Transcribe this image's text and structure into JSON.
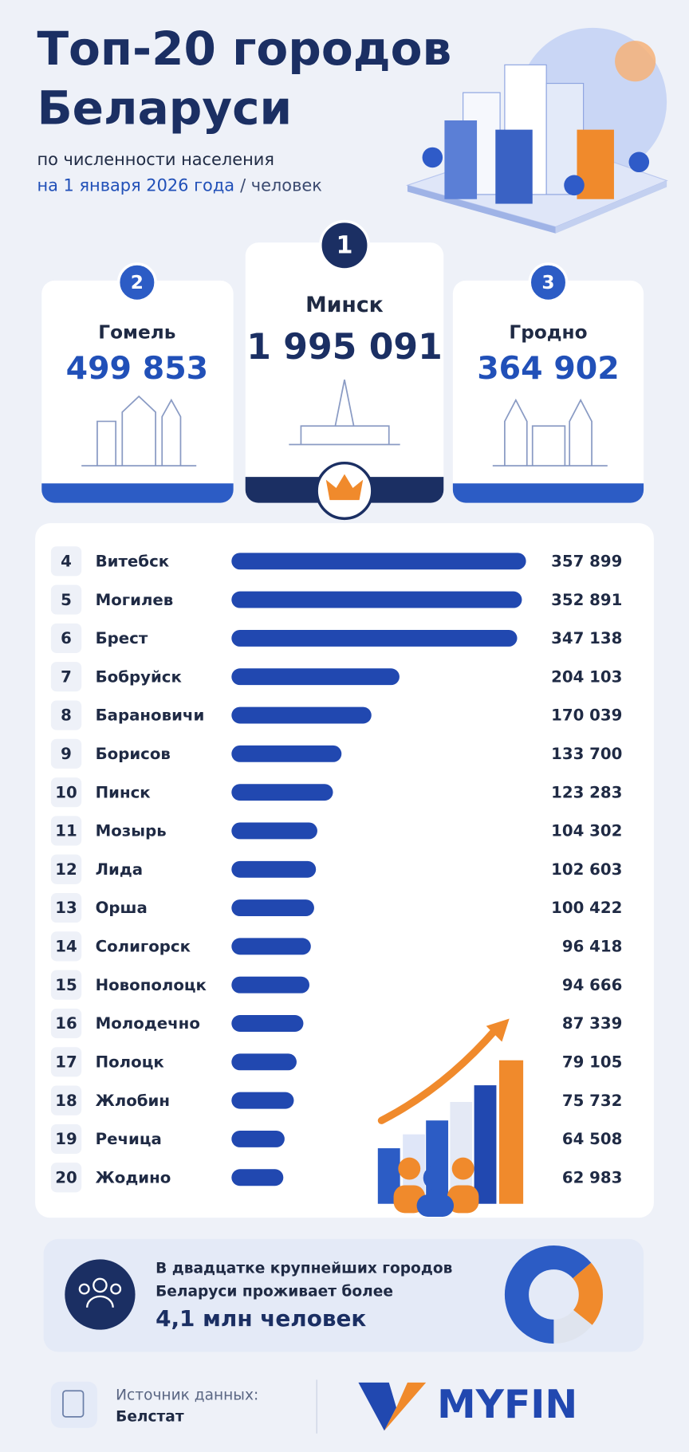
{
  "header": {
    "title_lines": [
      "Топ-20 городов",
      "Беларуси"
    ],
    "subtitle": "по численности населения",
    "date": "на 1 января 2026 года",
    "unit": "/ человек"
  },
  "podium": [
    {
      "rank": 2,
      "city": "Гомель",
      "population": "499 853"
    },
    {
      "rank": 1,
      "city": "Минск",
      "population": "1 995 091"
    },
    {
      "rank": 3,
      "city": "Гродно",
      "population": "364 902"
    }
  ],
  "chart_data": {
    "type": "bar",
    "ranks": [
      4,
      5,
      6,
      7,
      8,
      9,
      10,
      11,
      12,
      13,
      14,
      15,
      16,
      17,
      18,
      19,
      20
    ],
    "categories": [
      "Витебск",
      "Могилев",
      "Брест",
      "Бобруйск",
      "Барановичи",
      "Борисов",
      "Пинск",
      "Мозырь",
      "Лида",
      "Орша",
      "Солигорск",
      "Новополоцк",
      "Молодечно",
      "Полоцк",
      "Жлобин",
      "Речица",
      "Жодино"
    ],
    "values": [
      357899,
      352891,
      347138,
      204103,
      170039,
      133700,
      123283,
      104302,
      102603,
      100422,
      96418,
      94666,
      87339,
      79105,
      75732,
      64508,
      62983
    ],
    "value_labels": [
      "357 899",
      "352 891",
      "347 138",
      "204 103",
      "170 039",
      "133 700",
      "123 283",
      "104 302",
      "102 603",
      "100 422",
      "96 418",
      "94 666",
      "87 339",
      "79 105",
      "75 732",
      "64 508",
      "62 983"
    ],
    "color": "#2148b0"
  },
  "summary": {
    "text_lines": [
      "В двадцатке крупнейших городов",
      "Беларуси проживает более"
    ],
    "highlight": "4,1 млн человек"
  },
  "footer": {
    "source_label": "Источник данных:",
    "source": "Белстат",
    "logo": "MYFIN"
  }
}
